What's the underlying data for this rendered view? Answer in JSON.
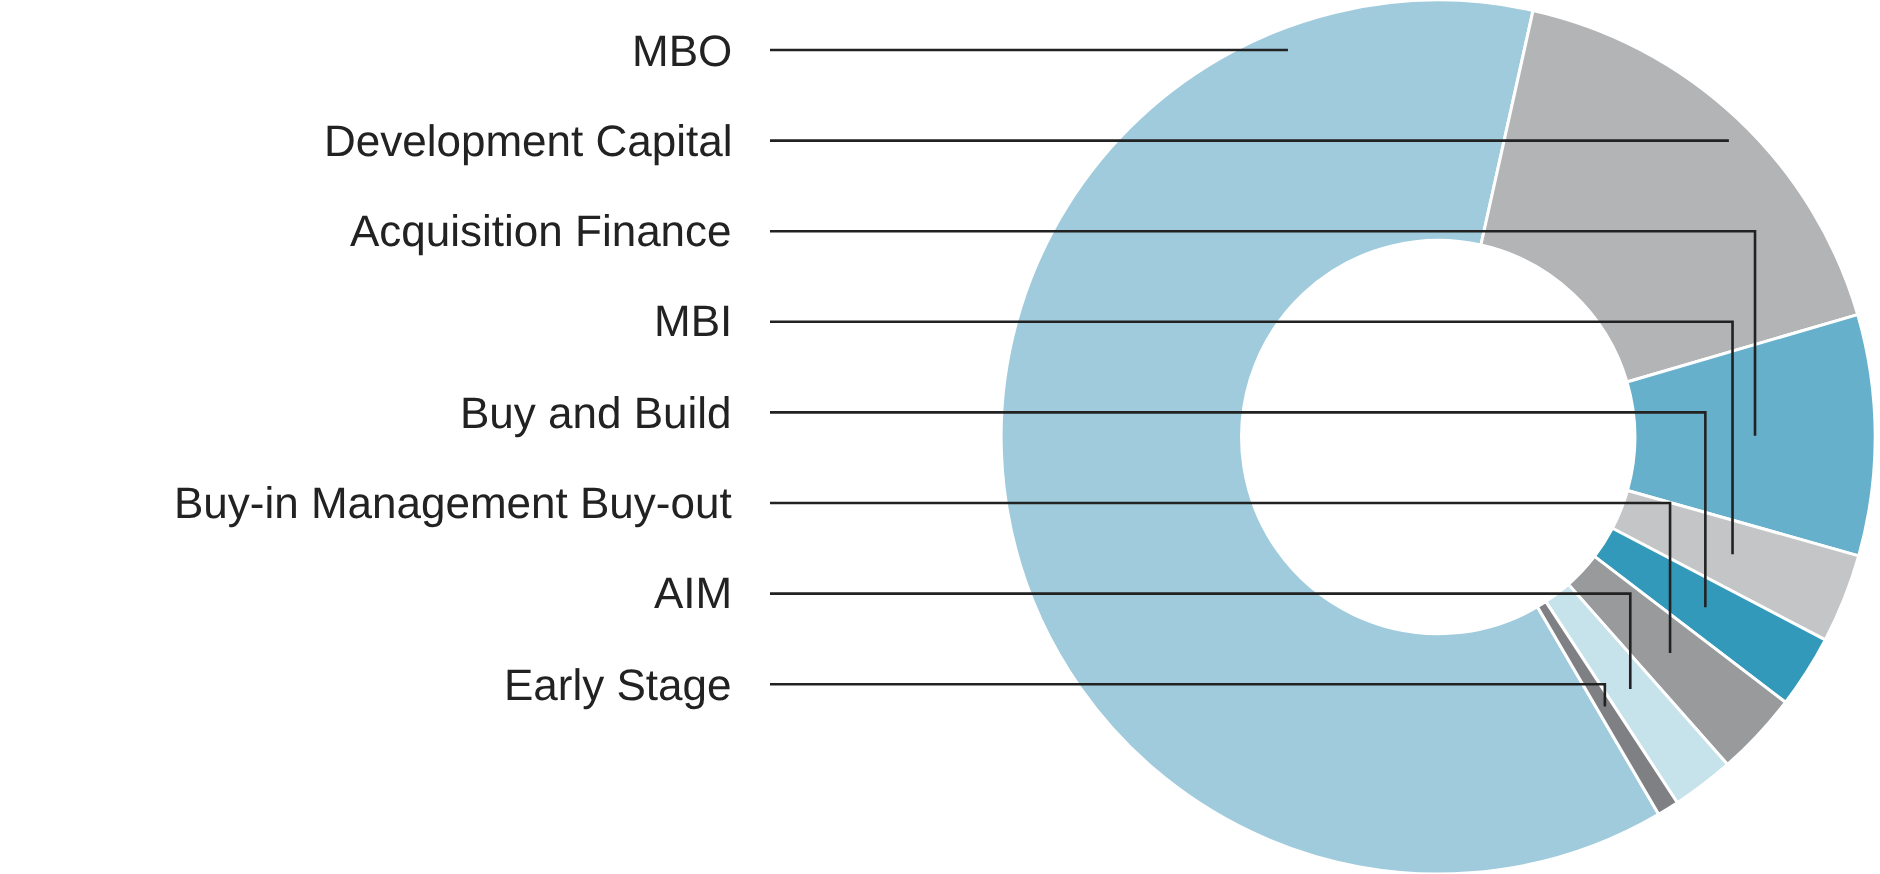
{
  "chart_data": {
    "type": "donut",
    "categories": [
      "MBO",
      "Development Capital",
      "Acquisition Finance",
      "MBI",
      "Buy and Build",
      "Buy-in Management Buy-out",
      "AIM",
      "Early Stage"
    ],
    "values": [
      61.9,
      17,
      8.9,
      3.3,
      2.7,
      3.1,
      2.3,
      0.8
    ],
    "colors": [
      "#9fcbdc",
      "#b3b4b6",
      "#66b0cb",
      "#c4c5c7",
      "#3399bb",
      "#999a9c",
      "#c6e2ea",
      "#7f8083"
    ],
    "legend": false
  }
}
